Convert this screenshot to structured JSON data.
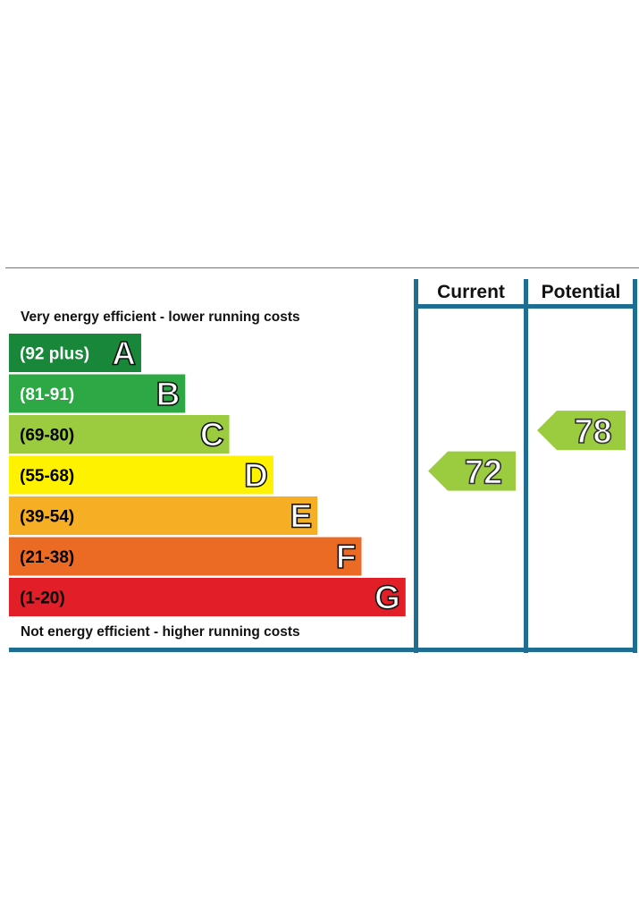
{
  "chart_data": {
    "type": "bar",
    "headers": {
      "current": "Current",
      "potential": "Potential"
    },
    "top_note": "Very energy efficient - lower running costs",
    "bottom_note": "Not energy efficient - higher running costs",
    "bands": [
      {
        "letter": "A",
        "range": "(92 plus)",
        "min": 92,
        "max": 100,
        "color": "#19873a",
        "text_color": "#ffffff"
      },
      {
        "letter": "B",
        "range": "(81-91)",
        "min": 81,
        "max": 91,
        "color": "#2ea844",
        "text_color": "#ffffff"
      },
      {
        "letter": "C",
        "range": "(69-80)",
        "min": 69,
        "max": 80,
        "color": "#9bcc3f",
        "text_color": "#000000"
      },
      {
        "letter": "D",
        "range": "(55-68)",
        "min": 55,
        "max": 68,
        "color": "#fef200",
        "text_color": "#000000"
      },
      {
        "letter": "E",
        "range": "(39-54)",
        "min": 39,
        "max": 54,
        "color": "#f6ae25",
        "text_color": "#000000"
      },
      {
        "letter": "F",
        "range": "(21-38)",
        "min": 21,
        "max": 38,
        "color": "#eb6b25",
        "text_color": "#000000"
      },
      {
        "letter": "G",
        "range": "(1-20)",
        "min": 1,
        "max": 20,
        "color": "#e21e28",
        "text_color": "#000000"
      }
    ],
    "current": {
      "value": 72,
      "band": "C",
      "color": "#9bcc3f"
    },
    "potential": {
      "value": 78,
      "band": "C",
      "color": "#9bcc3f"
    },
    "frame_color": "#1e6e93"
  }
}
